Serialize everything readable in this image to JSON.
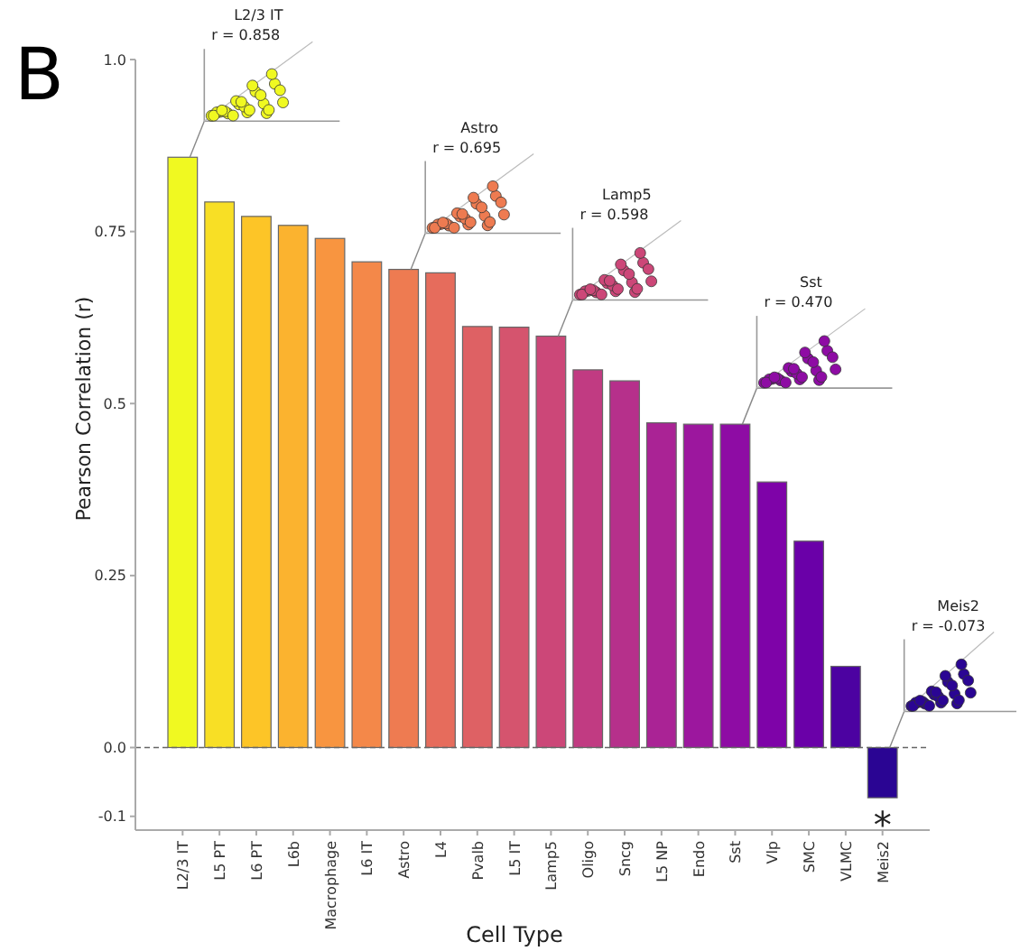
{
  "chart_data": {
    "type": "bar",
    "xlabel": "Cell Type",
    "ylabel": "Pearson Correlation (r)",
    "categories": [
      "L2/3 IT",
      "L5 PT",
      "L6 PT",
      "L6b",
      "Macrophage",
      "L6 IT",
      "Astro",
      "L4",
      "Pvalb",
      "L5 IT",
      "Lamp5",
      "Oligo",
      "Sncg",
      "L5 NP",
      "Endo",
      "Sst",
      "Vlp",
      "SMC",
      "VLMC",
      "Meis2"
    ],
    "values": [
      0.858,
      0.793,
      0.772,
      0.759,
      0.74,
      0.706,
      0.695,
      0.69,
      0.612,
      0.611,
      0.598,
      0.549,
      0.533,
      0.472,
      0.47,
      0.47,
      0.386,
      0.3,
      0.118,
      -0.073
    ],
    "colors": [
      "#f0f921",
      "#f8df25",
      "#fdc527",
      "#fbb32f",
      "#f89540",
      "#f48849",
      "#ee7b51",
      "#e66c5c",
      "#de6164",
      "#d5546e",
      "#cc4778",
      "#c13b82",
      "#b6308b",
      "#aa2395",
      "#9c179e",
      "#8e0ca4",
      "#7e03a8",
      "#6a00a8",
      "#4c02a1",
      "#2a0593"
    ],
    "ylim": [
      -0.12,
      1.0
    ],
    "yticks": [
      {
        "value": -0.1,
        "label": "-0.1"
      },
      {
        "value": 0,
        "label": "0.0"
      },
      0.25,
      0.5,
      0.75,
      {
        "value": 1,
        "label": "1.0"
      }
    ],
    "ref_lines": [
      {
        "axis": "y",
        "value": 0,
        "line_style": "dashed"
      }
    ],
    "grid": false,
    "annotations": [
      "B",
      "L2/3 IT",
      "r = 0.858",
      "Astro",
      "r = 0.695",
      "Lamp5",
      "r = 0.598",
      "Sst",
      "r = 0.470",
      "Meis2",
      "r = -0.073",
      "*"
    ]
  }
}
